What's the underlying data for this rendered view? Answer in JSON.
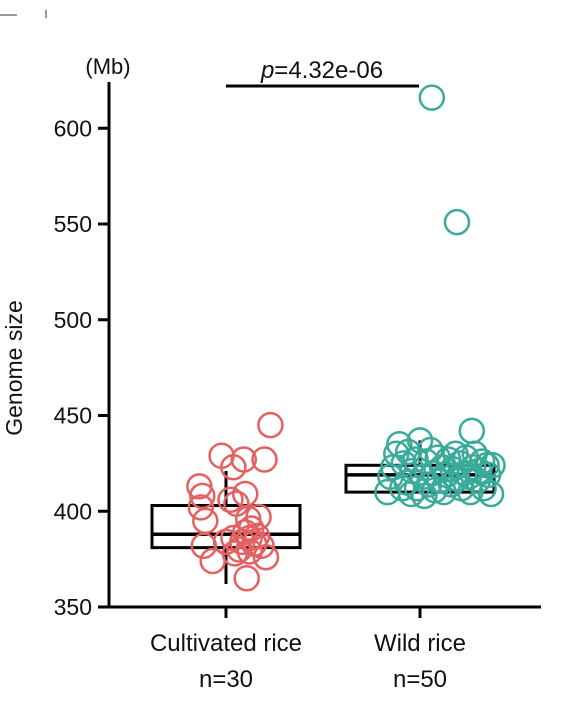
{
  "chart_data": {
    "type": "scatter",
    "ylabel": "Genome size",
    "yunit": "(Mb)",
    "ylim": [
      350,
      620
    ],
    "yticks": [
      350,
      400,
      450,
      500,
      550,
      600
    ],
    "annotation": {
      "p_italic": "p",
      "p_rest": "=4.32e-06"
    },
    "groups": [
      {
        "label": "Cultivated rice",
        "n_label": "n=30",
        "color": "#e56060",
        "box": {
          "min": 362,
          "q1": 381,
          "median": 388,
          "q3": 403,
          "max": 421
        },
        "points": [
          {
            "x": -0.18,
            "y": 413
          },
          {
            "x": -0.16,
            "y": 408
          },
          {
            "x": -0.17,
            "y": 402
          },
          {
            "x": -0.14,
            "y": 395
          },
          {
            "x": -0.15,
            "y": 382
          },
          {
            "x": -0.09,
            "y": 374
          },
          {
            "x": -0.03,
            "y": 429
          },
          {
            "x": 0.05,
            "y": 423
          },
          {
            "x": 0.12,
            "y": 427
          },
          {
            "x": 0.03,
            "y": 406
          },
          {
            "x": 0.07,
            "y": 404
          },
          {
            "x": 0.13,
            "y": 409
          },
          {
            "x": 0.0,
            "y": 384
          },
          {
            "x": 0.05,
            "y": 386
          },
          {
            "x": 0.11,
            "y": 384
          },
          {
            "x": 0.15,
            "y": 396
          },
          {
            "x": 0.17,
            "y": 391
          },
          {
            "x": 0.13,
            "y": 389
          },
          {
            "x": 0.16,
            "y": 386
          },
          {
            "x": 0.19,
            "y": 383
          },
          {
            "x": 0.21,
            "y": 387
          },
          {
            "x": 0.09,
            "y": 380
          },
          {
            "x": 0.06,
            "y": 378
          },
          {
            "x": 0.16,
            "y": 379
          },
          {
            "x": 0.24,
            "y": 382
          },
          {
            "x": 0.27,
            "y": 376
          },
          {
            "x": 0.14,
            "y": 365
          },
          {
            "x": 0.26,
            "y": 427
          },
          {
            "x": 0.3,
            "y": 445
          },
          {
            "x": 0.22,
            "y": 397
          }
        ]
      },
      {
        "label": "Wild rice",
        "n_label": "n=50",
        "color": "#3aaa9a",
        "box": {
          "min": 410,
          "q1": 410,
          "median": 419,
          "q3": 424,
          "max": 437
        },
        "points": [
          {
            "x": 0.08,
            "y": 616
          },
          {
            "x": 0.25,
            "y": 551
          },
          {
            "x": -0.22,
            "y": 410
          },
          {
            "x": -0.2,
            "y": 418
          },
          {
            "x": -0.18,
            "y": 423
          },
          {
            "x": -0.16,
            "y": 430
          },
          {
            "x": -0.14,
            "y": 435
          },
          {
            "x": -0.12,
            "y": 412
          },
          {
            "x": -0.11,
            "y": 425
          },
          {
            "x": -0.09,
            "y": 415
          },
          {
            "x": -0.08,
            "y": 431
          },
          {
            "x": -0.06,
            "y": 409
          },
          {
            "x": -0.05,
            "y": 421
          },
          {
            "x": -0.03,
            "y": 427
          },
          {
            "x": -0.02,
            "y": 412
          },
          {
            "x": 0.0,
            "y": 437
          },
          {
            "x": 0.02,
            "y": 418
          },
          {
            "x": 0.03,
            "y": 408
          },
          {
            "x": 0.04,
            "y": 426
          },
          {
            "x": 0.06,
            "y": 414
          },
          {
            "x": 0.07,
            "y": 432
          },
          {
            "x": 0.09,
            "y": 420
          },
          {
            "x": 0.1,
            "y": 411
          },
          {
            "x": 0.12,
            "y": 428
          },
          {
            "x": 0.13,
            "y": 416
          },
          {
            "x": 0.15,
            "y": 423
          },
          {
            "x": 0.16,
            "y": 410
          },
          {
            "x": 0.18,
            "y": 419
          },
          {
            "x": 0.19,
            "y": 427
          },
          {
            "x": 0.21,
            "y": 414
          },
          {
            "x": 0.22,
            "y": 422
          },
          {
            "x": 0.24,
            "y": 430
          },
          {
            "x": 0.25,
            "y": 417
          },
          {
            "x": 0.27,
            "y": 425
          },
          {
            "x": 0.28,
            "y": 412
          },
          {
            "x": 0.3,
            "y": 420
          },
          {
            "x": 0.31,
            "y": 428
          },
          {
            "x": 0.33,
            "y": 418
          },
          {
            "x": 0.34,
            "y": 410
          },
          {
            "x": 0.36,
            "y": 423
          },
          {
            "x": 0.37,
            "y": 430
          },
          {
            "x": 0.39,
            "y": 416
          },
          {
            "x": 0.4,
            "y": 421
          },
          {
            "x": 0.42,
            "y": 426
          },
          {
            "x": 0.43,
            "y": 412
          },
          {
            "x": 0.45,
            "y": 424
          },
          {
            "x": 0.46,
            "y": 419
          },
          {
            "x": 0.35,
            "y": 442
          },
          {
            "x": 0.48,
            "y": 409
          },
          {
            "x": 0.49,
            "y": 424
          }
        ]
      }
    ]
  }
}
